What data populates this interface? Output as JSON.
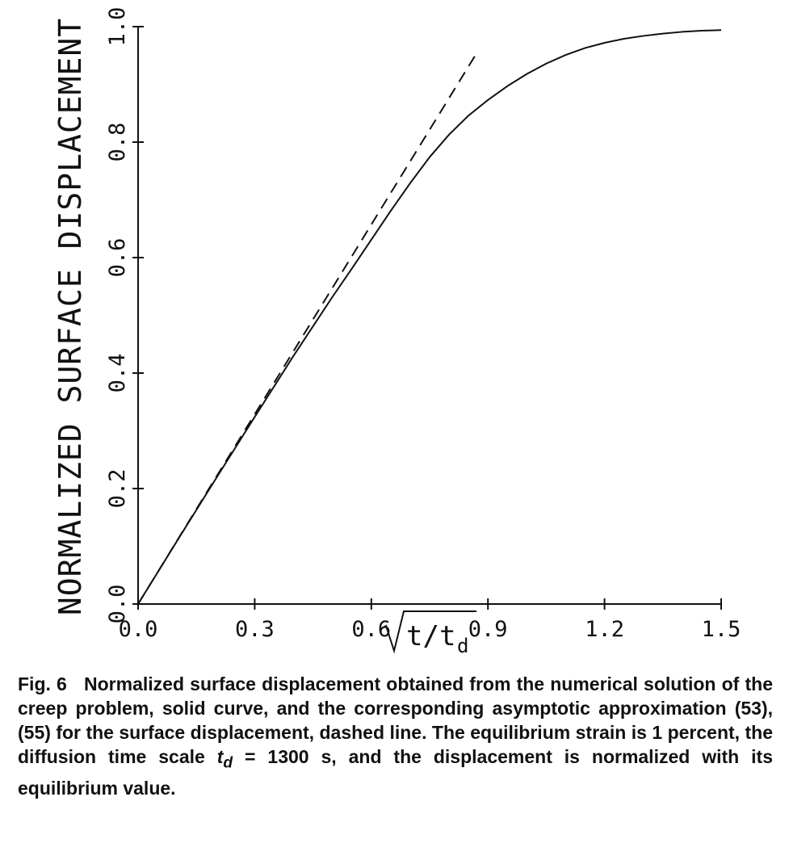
{
  "chart_data": {
    "type": "line",
    "title": "",
    "ylabel": "NORMALIZED SURFACE DISPLACEMENT",
    "xlabel": {
      "radicand": "t/t",
      "subscript": "d"
    },
    "xlim": [
      0.0,
      1.5
    ],
    "ylim": [
      0.0,
      1.0
    ],
    "x_ticks": [
      "0.0",
      "0.3",
      "0.6",
      "0.9",
      "1.2",
      "1.5"
    ],
    "y_ticks": [
      "0.0",
      "0.2",
      "0.4",
      "0.6",
      "0.8",
      "1.0"
    ],
    "grid": false,
    "series": [
      {
        "style": "solid",
        "points": [
          [
            0.0,
            0.0
          ],
          [
            0.1,
            0.109
          ],
          [
            0.2,
            0.217
          ],
          [
            0.3,
            0.324
          ],
          [
            0.4,
            0.43
          ],
          [
            0.5,
            0.532
          ],
          [
            0.55,
            0.581
          ],
          [
            0.6,
            0.631
          ],
          [
            0.65,
            0.681
          ],
          [
            0.7,
            0.729
          ],
          [
            0.75,
            0.774
          ],
          [
            0.8,
            0.813
          ],
          [
            0.85,
            0.846
          ],
          [
            0.9,
            0.873
          ],
          [
            0.95,
            0.897
          ],
          [
            1.0,
            0.918
          ],
          [
            1.05,
            0.936
          ],
          [
            1.1,
            0.951
          ],
          [
            1.15,
            0.963
          ],
          [
            1.2,
            0.972
          ],
          [
            1.25,
            0.979
          ],
          [
            1.3,
            0.984
          ],
          [
            1.35,
            0.988
          ],
          [
            1.4,
            0.991
          ],
          [
            1.45,
            0.993
          ],
          [
            1.5,
            0.994
          ]
        ]
      },
      {
        "style": "dashed",
        "points": [
          [
            0.0,
            0.0
          ],
          [
            0.87,
            0.953
          ]
        ]
      }
    ]
  },
  "caption": {
    "label": "Fig. 6",
    "before_td": "Normalized surface displacement obtained from the numerical solution of the creep problem, solid curve, and the corresponding asymptotic approximation (53), (55) for the surface displacement, dashed line. The equilibrium strain is 1 percent, the diffusion time scale",
    "td_base": "t",
    "td_sub": "d",
    "after_td": " = 1300 s, and the displacement is normalized with its equilibrium value."
  }
}
